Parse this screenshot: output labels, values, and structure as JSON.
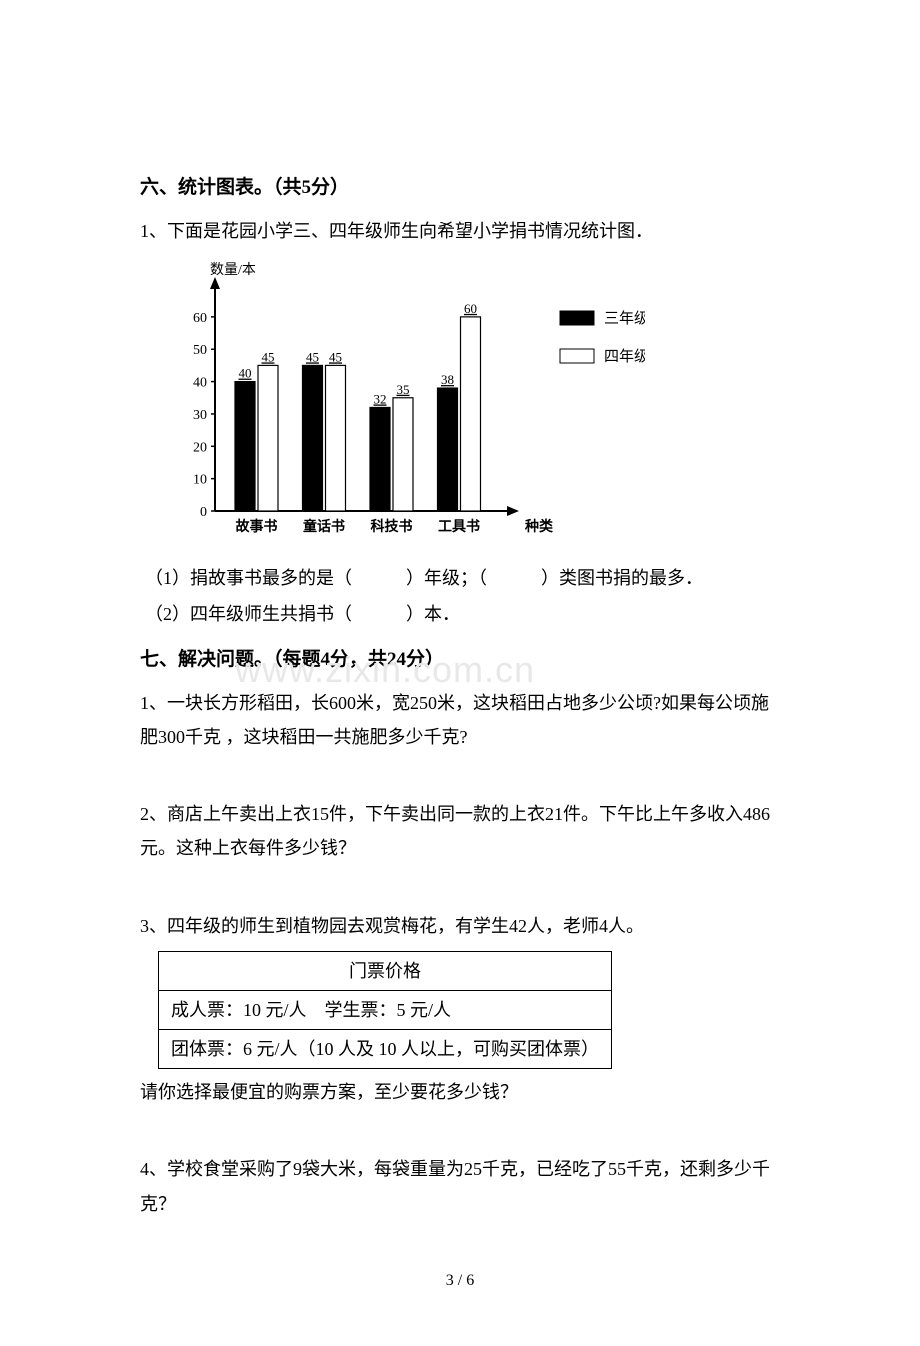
{
  "section6": {
    "title": "六、统计图表。（共5分）",
    "q1": {
      "text": "1、下面是花园小学三、四年级师生向希望小学捐书情况统计图．",
      "sub1": "（1）捐故事书最多的是（　　　）年级；（　　　）类图书捐的最多．",
      "sub2": "（2）四年级师生共捐书（　　　）本．"
    }
  },
  "chart": {
    "type": "bar",
    "y_axis_label": "数量/本",
    "x_axis_label": "种类",
    "categories": [
      "故事书",
      "童话书",
      "科技书",
      "工具书"
    ],
    "series": [
      {
        "name": "三年级",
        "values": [
          40,
          45,
          32,
          38
        ],
        "color": "#000000"
      },
      {
        "name": "四年级",
        "values": [
          45,
          45,
          35,
          60
        ],
        "color": "#ffffff"
      }
    ],
    "y_ticks": [
      0,
      10,
      20,
      30,
      40,
      50,
      60
    ],
    "ylim": [
      0,
      68
    ],
    "bar_value_color": "#000000",
    "axis_color": "#000000",
    "background_color": "#ffffff",
    "font_size": 14,
    "label_font_size": 14,
    "legend_position": "right"
  },
  "section7": {
    "title": "七、解决问题。（每题4分，共24分）",
    "q1": "1、一块长方形稻田，长600米，宽250米，这块稻田占地多少公顷?如果每公顷施肥300千克 ，这块稻田一共施肥多少千克?",
    "q2": "2、商店上午卖出上衣15件，下午卖出同一款的上衣21件。下午比上午多收入486元。这种上衣每件多少钱？",
    "q3": "3、四年级的师生到植物园去观赏梅花，有学生42人，老师4人。",
    "q3_after": "请你选择最便宜的购票方案，至少要花多少钱？",
    "q4": "4、学校食堂采购了9袋大米，每袋重量为25千克，已经吃了55千克，还剩多少千克？"
  },
  "ticket_table": {
    "header": "门票价格",
    "row1": "成人票：10 元/人　学生票：5 元/人",
    "row2": "团体票：6 元/人（10 人及 10 人以上，可购买团体票）"
  },
  "watermark": "www.zixin.com.cn",
  "page_num": "3 / 6"
}
